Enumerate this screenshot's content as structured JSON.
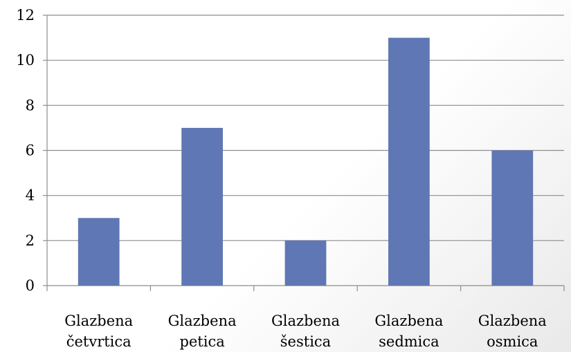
{
  "chart_data": {
    "type": "bar",
    "categories": [
      [
        "Glazbena",
        "četvrtica"
      ],
      [
        "Glazbena",
        "petica"
      ],
      [
        "Glazbena",
        "šestica"
      ],
      [
        "Glazbena",
        "sedmica"
      ],
      [
        "Glazbena",
        "osmica"
      ]
    ],
    "values": [
      3,
      7,
      2,
      11,
      6
    ],
    "title": "",
    "xlabel": "",
    "ylabel": "",
    "ylim": [
      0,
      12
    ],
    "yticks": [
      0,
      2,
      4,
      6,
      8,
      10,
      12
    ],
    "grid": true,
    "legend": "none",
    "colors": {
      "bar": "#5f77b4",
      "grid": "#8c8c8c",
      "axis": "#8c8c8c"
    }
  }
}
